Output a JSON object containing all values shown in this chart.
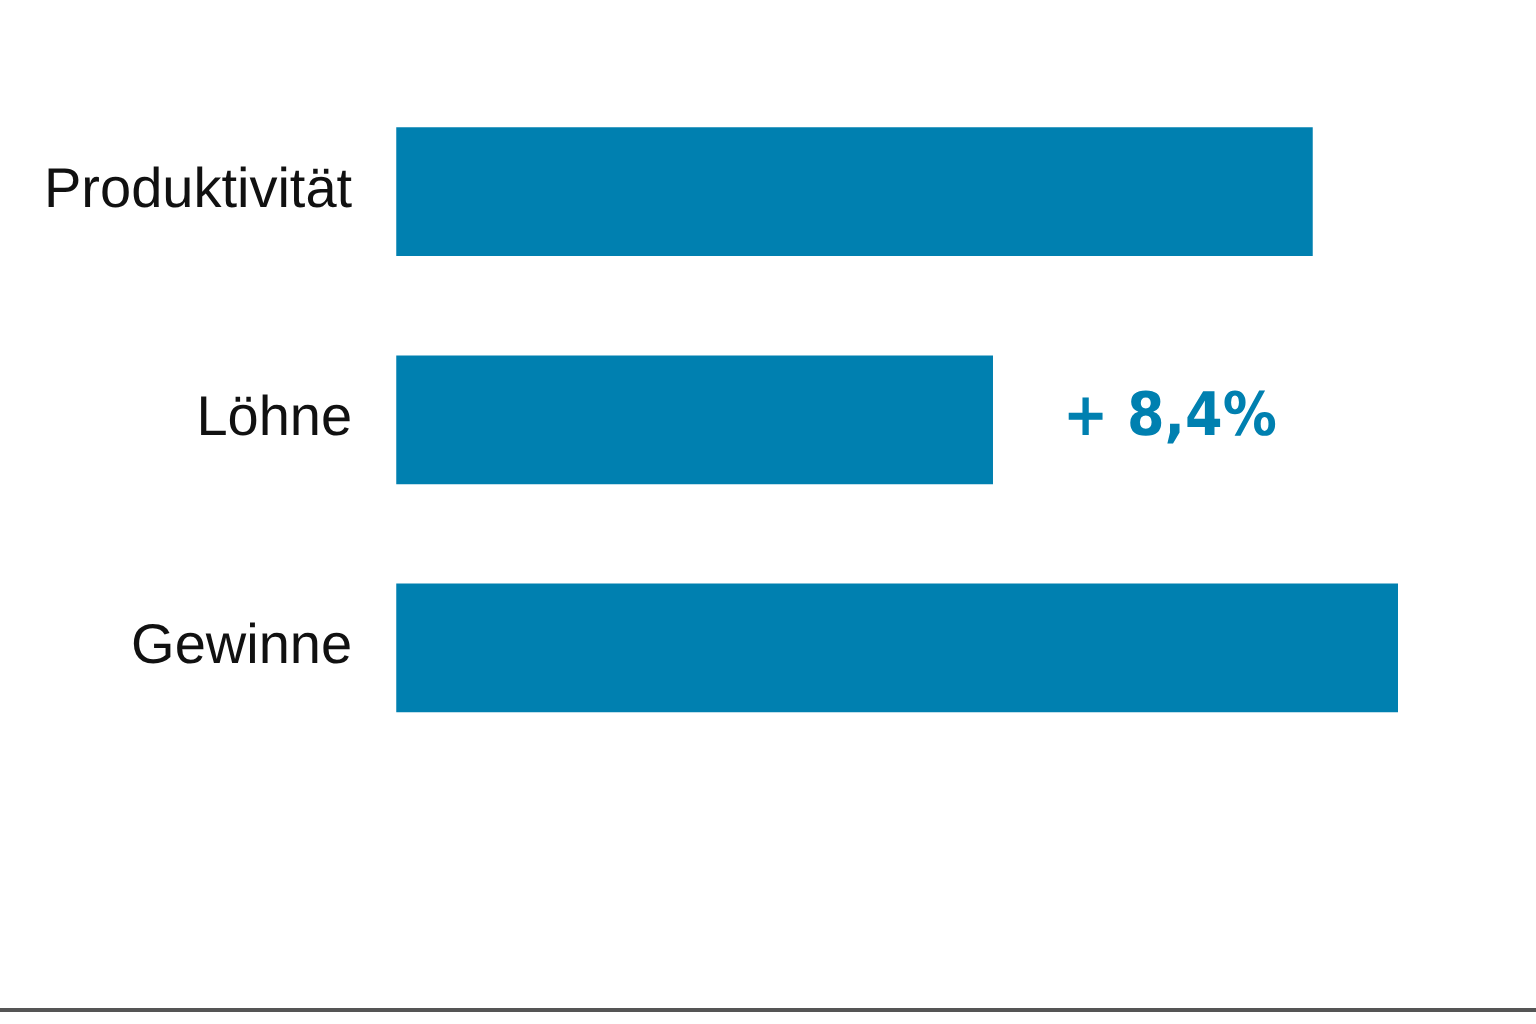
{
  "chart_data": {
    "type": "bar",
    "orientation": "horizontal",
    "categories": [
      "Produktivität",
      "Löhne",
      "Gewinne"
    ],
    "values": [
      12.9,
      8.4,
      14.1
    ],
    "color": "#0080b0",
    "value_labels": [
      null,
      "+ 8,4%",
      null
    ],
    "legend": false
  }
}
